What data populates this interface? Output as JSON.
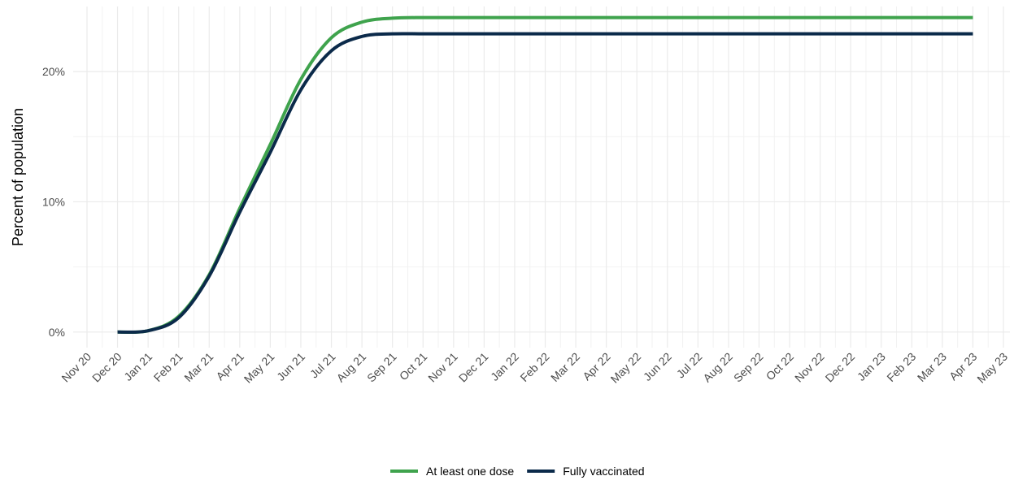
{
  "chart_data": {
    "type": "line",
    "y_label": "Percent of population",
    "categories": [
      "Nov 20",
      "Dec 20",
      "Jan 21",
      "Feb 21",
      "Mar 21",
      "Apr 21",
      "May 21",
      "Jun 21",
      "Jul 21",
      "Aug 21",
      "Sep 21",
      "Oct 21",
      "Nov 21",
      "Dec 21",
      "Jan 22",
      "Feb 22",
      "Mar 22",
      "Apr 22",
      "May 22",
      "Jun 22",
      "Jul 22",
      "Aug 22",
      "Sep 22",
      "Oct 22",
      "Nov 22",
      "Dec 22",
      "Jan 23",
      "Feb 23",
      "Mar 23",
      "Apr 23",
      "May 23"
    ],
    "series": [
      {
        "name": "At least one dose",
        "color": "#3fa34d",
        "values": [
          null,
          0,
          0.1,
          1.2,
          4.4,
          9.5,
          14.4,
          19.4,
          22.6,
          23.8,
          24.1,
          24.15,
          24.15,
          24.15,
          24.15,
          24.15,
          24.15,
          24.15,
          24.15,
          24.15,
          24.15,
          24.15,
          24.15,
          24.15,
          24.15,
          24.15,
          24.15,
          24.15,
          24.15,
          24.15,
          null
        ]
      },
      {
        "name": "Fully vaccinated",
        "color": "#0b2a4a",
        "values": [
          null,
          0,
          0.1,
          1.1,
          4.3,
          9.2,
          13.8,
          18.6,
          21.6,
          22.7,
          22.9,
          22.9,
          22.9,
          22.9,
          22.9,
          22.9,
          22.9,
          22.9,
          22.9,
          22.9,
          22.9,
          22.9,
          22.9,
          22.9,
          22.9,
          22.9,
          22.9,
          22.9,
          22.9,
          22.9,
          null
        ]
      }
    ],
    "ylim": [
      -1.2,
      25
    ],
    "yticks": [
      {
        "value": 0,
        "label": "0%"
      },
      {
        "value": 10,
        "label": "10%"
      },
      {
        "value": 20,
        "label": "20%"
      }
    ],
    "grid": true,
    "legend": "bottom"
  }
}
